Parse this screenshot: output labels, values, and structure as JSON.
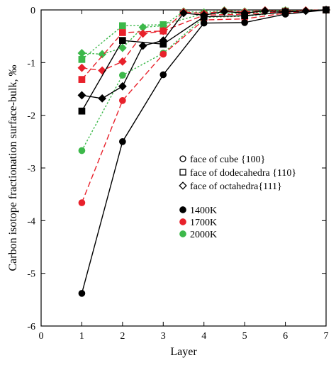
{
  "chart_data": {
    "type": "line",
    "xlabel": "Layer",
    "ylabel": "Carbon isotope fractionation surface-bulk, ‰",
    "xlim": [
      0,
      7
    ],
    "ylim": [
      -6,
      0
    ],
    "x_ticks": [
      "0",
      "1",
      "2",
      "3",
      "4",
      "5",
      "6",
      "7"
    ],
    "y_ticks": [
      "-6",
      "-5",
      "-4",
      "-3",
      "-2",
      "-1",
      "0"
    ],
    "grid": false,
    "legend_placement": "right-middle",
    "shape_legend": [
      {
        "marker": "circle",
        "label": "face of cube {100}"
      },
      {
        "marker": "square",
        "label": "face of dodecahedra {110}"
      },
      {
        "marker": "diamond",
        "label": "face of octahedra{111}"
      }
    ],
    "color_legend": [
      {
        "label": "1400K",
        "color": "#000000"
      },
      {
        "label": "1700K",
        "color": "#e8212b"
      },
      {
        "label": "2000K",
        "color": "#3cb84a"
      }
    ],
    "series": [
      {
        "marker": "circle",
        "temperature": "1400K",
        "color": "#000000",
        "line": "solid",
        "x": [
          1,
          2,
          3,
          4,
          5,
          6,
          7
        ],
        "y": [
          -5.38,
          -2.5,
          -1.23,
          -0.25,
          -0.24,
          -0.08,
          0.0
        ]
      },
      {
        "marker": "square",
        "temperature": "1400K",
        "color": "#000000",
        "line": "solid",
        "x": [
          1,
          2,
          3,
          4,
          5,
          6,
          7
        ],
        "y": [
          -1.92,
          -0.58,
          -0.65,
          -0.13,
          -0.11,
          -0.04,
          0.0
        ]
      },
      {
        "marker": "diamond",
        "temperature": "1400K",
        "color": "#000000",
        "line": "solid",
        "x": [
          1,
          1.5,
          2,
          2.5,
          3,
          3.5,
          4,
          4.5,
          5,
          5.5,
          6,
          6.5,
          7
        ],
        "y": [
          -1.62,
          -1.68,
          -1.45,
          -0.68,
          -0.58,
          -0.06,
          -0.1,
          -0.03,
          -0.06,
          -0.02,
          -0.03,
          -0.02,
          0.0
        ]
      },
      {
        "marker": "circle",
        "temperature": "1700K",
        "color": "#e8212b",
        "line": "dashed",
        "x": [
          1,
          2,
          3,
          4,
          5,
          6,
          7
        ],
        "y": [
          -3.66,
          -1.72,
          -0.84,
          -0.19,
          -0.17,
          -0.06,
          0.0
        ]
      },
      {
        "marker": "square",
        "temperature": "1700K",
        "color": "#e8212b",
        "line": "dashed",
        "x": [
          1,
          2,
          3,
          4,
          5,
          6,
          7
        ],
        "y": [
          -1.32,
          -0.43,
          -0.4,
          -0.1,
          -0.08,
          -0.03,
          0.0
        ]
      },
      {
        "marker": "diamond",
        "temperature": "1700K",
        "color": "#e8212b",
        "line": "dashed",
        "x": [
          1,
          1.5,
          2,
          2.5,
          3,
          3.5,
          4,
          4.5,
          5,
          5.5,
          6,
          6.5,
          7
        ],
        "y": [
          -1.1,
          -1.15,
          -0.98,
          -0.45,
          -0.4,
          -0.04,
          -0.07,
          -0.02,
          -0.04,
          -0.01,
          -0.02,
          -0.01,
          0.0
        ]
      },
      {
        "marker": "circle",
        "temperature": "2000K",
        "color": "#3cb84a",
        "line": "dotted",
        "x": [
          1,
          2,
          3,
          4,
          5,
          6,
          7
        ],
        "y": [
          -2.67,
          -1.24,
          -0.82,
          -0.14,
          -0.12,
          -0.04,
          0.0
        ]
      },
      {
        "marker": "square",
        "temperature": "2000K",
        "color": "#3cb84a",
        "line": "dotted",
        "x": [
          1,
          2,
          3,
          4,
          5,
          6,
          7
        ],
        "y": [
          -0.94,
          -0.3,
          -0.28,
          -0.07,
          -0.06,
          -0.02,
          0.0
        ]
      },
      {
        "marker": "diamond",
        "temperature": "2000K",
        "color": "#3cb84a",
        "line": "dotted",
        "x": [
          1,
          1.5,
          2,
          2.5,
          3,
          3.5,
          4,
          4.5,
          5,
          5.5,
          6,
          6.5,
          7
        ],
        "y": [
          -0.82,
          -0.84,
          -0.72,
          -0.33,
          -0.3,
          -0.03,
          -0.05,
          -0.01,
          -0.03,
          -0.01,
          -0.01,
          -0.01,
          0.0
        ]
      }
    ]
  }
}
